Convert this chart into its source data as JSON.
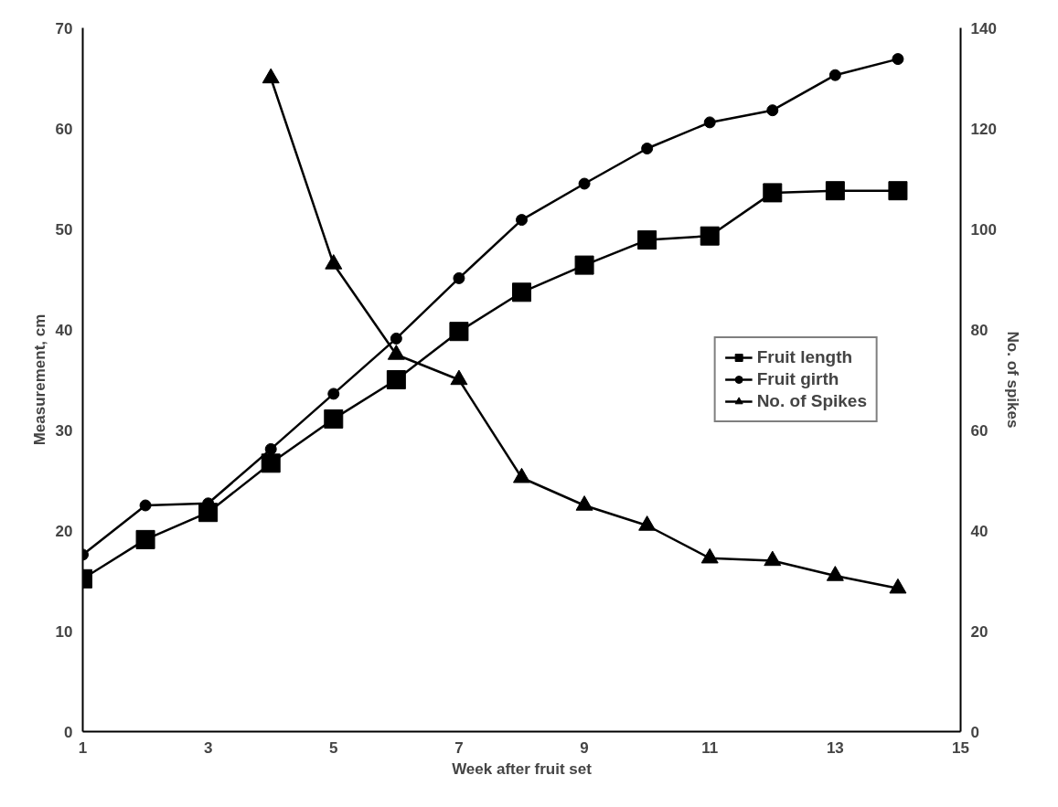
{
  "chart_data": {
    "type": "line",
    "xlabel": "Week after fruit set",
    "ylabel": "Measurement, cm",
    "y2label": "No. of spikes",
    "x": [
      1,
      2,
      3,
      4,
      5,
      6,
      7,
      8,
      9,
      10,
      11,
      12,
      13,
      14
    ],
    "xlim": [
      1,
      15
    ],
    "xticks": [
      1,
      3,
      5,
      7,
      9,
      11,
      13,
      15
    ],
    "ylim": [
      0,
      70
    ],
    "yticks": [
      0,
      10,
      20,
      30,
      40,
      50,
      60,
      70
    ],
    "y2lim": [
      0,
      140
    ],
    "y2ticks": [
      0,
      20,
      40,
      60,
      80,
      100,
      120,
      140
    ],
    "grid": false,
    "legend": "right",
    "series": [
      {
        "name": "Fruit length",
        "color": "#000000",
        "marker": "square",
        "values": [
          15.2,
          19.1,
          21.8,
          26.7,
          31.1,
          35,
          39.8,
          43.7,
          46.4,
          48.9,
          49.3,
          53.6,
          53.8,
          53.8
        ]
      },
      {
        "name": "Fruit girth",
        "color": "#000000",
        "marker": "circle",
        "values": [
          17.6,
          22.5,
          22.7,
          28.1,
          33.6,
          39.1,
          45.1,
          50.9,
          54.5,
          58,
          60.6,
          61.8,
          65.3,
          66.9
        ]
      },
      {
        "name": "No. of Spikes",
        "color": "#000000",
        "marker": "triangle",
        "axis": "y2",
        "x": [
          4,
          5,
          6,
          7,
          8,
          9,
          10,
          11,
          12,
          13,
          14
        ],
        "values": [
          130,
          93,
          75,
          70,
          50.5,
          45,
          41,
          34.5,
          34,
          31,
          28.5
        ]
      }
    ]
  }
}
